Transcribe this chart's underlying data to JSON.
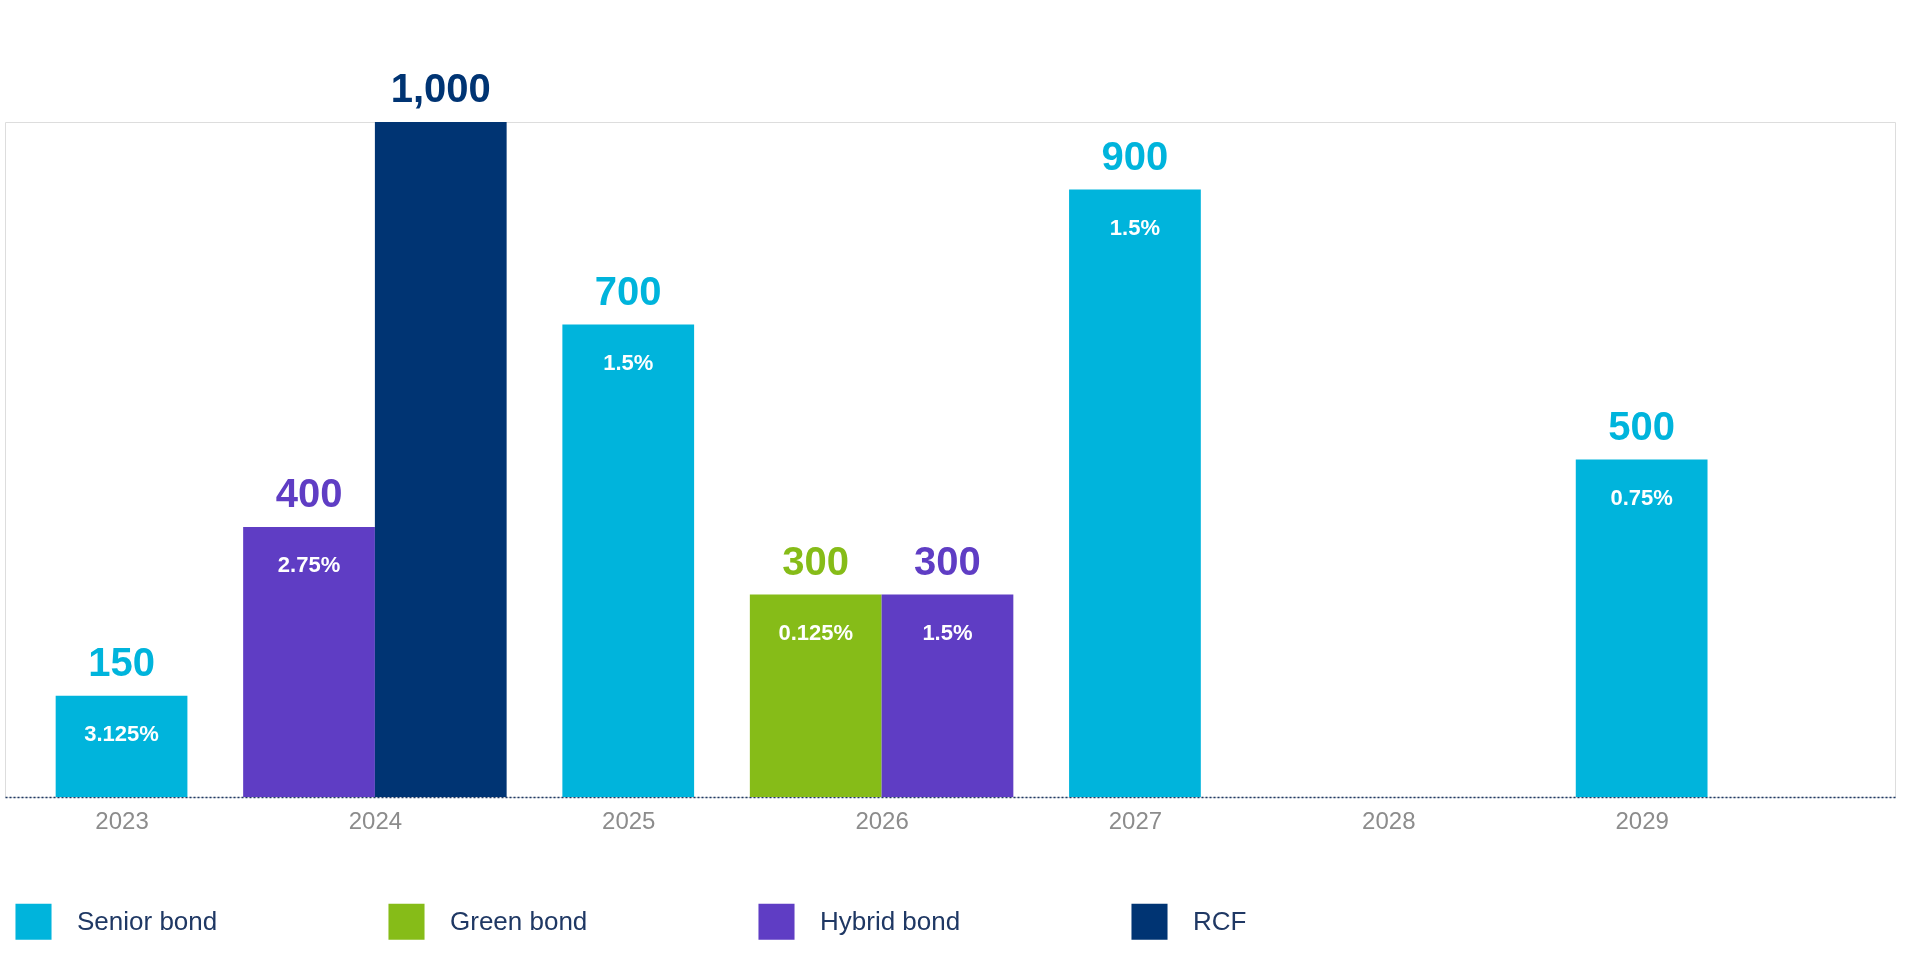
{
  "chart_data": {
    "type": "bar",
    "categories": [
      "2023",
      "2024",
      "2025",
      "2026",
      "2027",
      "2028",
      "2029"
    ],
    "series": [
      {
        "name": "Senior bond",
        "color": "#00b4dc",
        "values": [
          150,
          null,
          700,
          null,
          900,
          null,
          500
        ],
        "value_labels": [
          "150",
          null,
          "700",
          null,
          "900",
          null,
          "500"
        ]
      },
      {
        "name": "Green bond",
        "color": "#86bc18",
        "values": [
          null,
          null,
          null,
          300,
          null,
          null,
          null
        ],
        "value_labels": [
          null,
          null,
          null,
          "300",
          null,
          null,
          null
        ]
      },
      {
        "name": "Hybrid bond",
        "color": "#5f3dc4",
        "values": [
          null,
          400,
          null,
          300,
          null,
          null,
          null
        ],
        "value_labels": [
          null,
          "400",
          null,
          "300",
          null,
          null,
          null
        ]
      },
      {
        "name": "RCF",
        "color": "#003473",
        "values": [
          null,
          1000,
          null,
          null,
          null,
          null,
          null
        ],
        "value_labels": [
          null,
          "1,000",
          null,
          null,
          null,
          null,
          null
        ]
      }
    ],
    "annotations": [
      {
        "text": "3.125%",
        "x": "2023",
        "y": 150
      },
      {
        "text": "2.75%",
        "x": "2024",
        "y": 400
      },
      {
        "text": "1.5%",
        "x": "2025",
        "y": 700
      },
      {
        "text": "0.125%",
        "x": "2026",
        "y": 300
      },
      {
        "text": "1.5%",
        "x": "2026",
        "y": 300
      },
      {
        "text": "1.5%",
        "x": "2027",
        "y": 900
      },
      {
        "text": "0.75%",
        "x": "2029",
        "y": 500
      }
    ],
    "tick_labels": "x",
    "legend": "bottom"
  }
}
